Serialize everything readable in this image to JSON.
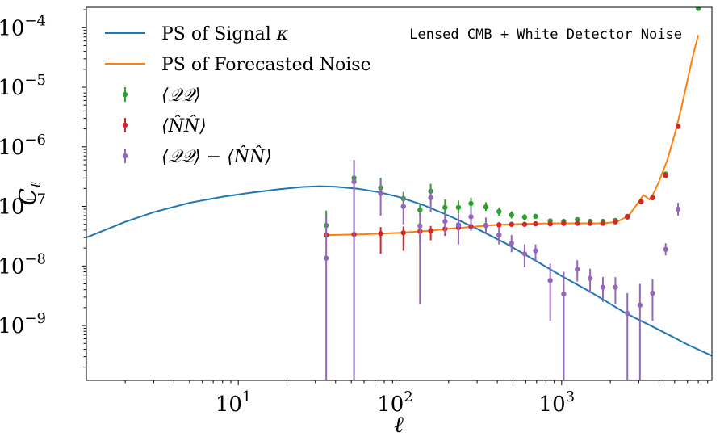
{
  "chart_data": {
    "type": "scatter",
    "xlabel": "ℓ",
    "ylabel": "C_ℓ",
    "xscale": "log",
    "yscale": "log",
    "xlim": [
      1.15,
      8500
    ],
    "ylim": [
      1.2e-10,
      0.00022
    ],
    "x_ticks": [
      {
        "value": 10,
        "label": "10",
        "exp": "1"
      },
      {
        "value": 100,
        "label": "10",
        "exp": "2"
      },
      {
        "value": 1000,
        "label": "10",
        "exp": "3"
      }
    ],
    "y_ticks": [
      {
        "value": 1e-09,
        "label": "10",
        "exp": "−9"
      },
      {
        "value": 1e-08,
        "label": "10",
        "exp": "−8"
      },
      {
        "value": 1e-07,
        "label": "10",
        "exp": "−7"
      },
      {
        "value": 1e-06,
        "label": "10",
        "exp": "−6"
      },
      {
        "value": 1e-05,
        "label": "10",
        "exp": "−5"
      },
      {
        "value": 0.0001,
        "label": "10",
        "exp": "−4"
      }
    ],
    "annotation": "Lensed CMB + White Detector Noise",
    "legend_position": "top-left",
    "colors": {
      "signal": "#1f77b4",
      "noise": "#ff7f0e",
      "QQ": "#2ca02c",
      "NN": "#d62728",
      "diff": "#9467bd"
    },
    "lines": [
      {
        "name": "PS of Signal κ",
        "color": "#1f77b4",
        "x": [
          1.15,
          2,
          3,
          5,
          8,
          12,
          18,
          25,
          32,
          40,
          55,
          75,
          100,
          140,
          200,
          300,
          450,
          700,
          1000,
          1500,
          2500,
          4000,
          6000,
          8500
        ],
        "y": [
          3e-08,
          5.5e-08,
          8e-08,
          1.15e-07,
          1.45e-07,
          1.7e-07,
          1.95e-07,
          2.12e-07,
          2.18e-07,
          2.14e-07,
          1.98e-07,
          1.72e-07,
          1.42e-07,
          1.05e-07,
          7e-08,
          4.2e-08,
          2.4e-08,
          1.2e-08,
          6.8e-09,
          3.7e-09,
          1.6e-09,
          8.5e-10,
          4.8e-10,
          3.1e-10
        ]
      },
      {
        "name": "PS of Forecasted Noise",
        "color": "#ff7f0e",
        "x": [
          35,
          60,
          100,
          150,
          200,
          300,
          400,
          600,
          900,
          1300,
          1800,
          2200,
          2600,
          2900,
          3200,
          3500,
          3700,
          4000,
          4500,
          5000,
          5500,
          6000,
          6500,
          7000
        ],
        "y": [
          3.3e-08,
          3.4e-08,
          3.6e-08,
          3.9e-08,
          4.2e-08,
          4.6e-08,
          4.9e-08,
          5.1e-08,
          5.2e-08,
          5.2e-08,
          5.2e-08,
          5.5e-08,
          7e-08,
          1.05e-07,
          1.55e-07,
          1.3e-07,
          1.65e-07,
          2.6e-07,
          6e-07,
          1.6e-06,
          4.5e-06,
          1.3e-05,
          3.5e-05,
          7.5e-05
        ]
      }
    ],
    "series": [
      {
        "name": "⟨QQ⟩",
        "color": "#2ca02c",
        "points": [
          {
            "x": 35,
            "y": 4.8e-08,
            "lo": 3.5e-08,
            "hi": 8.5e-08
          },
          {
            "x": 52,
            "y": 3e-07,
            "lo": 2.5e-07,
            "hi": 3.3e-07
          },
          {
            "x": 76,
            "y": 2.05e-07,
            "lo": 1.6e-07,
            "hi": 3e-07
          },
          {
            "x": 105,
            "y": 1.35e-07,
            "lo": 1e-07,
            "hi": 1.75e-07
          },
          {
            "x": 133,
            "y": 8.7e-08,
            "lo": 7e-08,
            "hi": 1.1e-07
          },
          {
            "x": 155,
            "y": 1.8e-07,
            "lo": 1.2e-07,
            "hi": 2.4e-07
          },
          {
            "x": 190,
            "y": 9.6e-08,
            "lo": 7.5e-08,
            "hi": 1.3e-07
          },
          {
            "x": 230,
            "y": 9.6e-08,
            "lo": 7.6e-08,
            "hi": 1.25e-07
          },
          {
            "x": 275,
            "y": 1.12e-07,
            "lo": 9e-08,
            "hi": 1.4e-07
          },
          {
            "x": 340,
            "y": 9.8e-08,
            "lo": 8.4e-08,
            "hi": 1.17e-07
          },
          {
            "x": 410,
            "y": 8.2e-08,
            "lo": 7e-08,
            "hi": 9.6e-08
          },
          {
            "x": 490,
            "y": 7.2e-08,
            "lo": 6.3e-08,
            "hi": 8.3e-08
          },
          {
            "x": 590,
            "y": 6.6e-08,
            "lo": 5.9e-08,
            "hi": 7.4e-08
          },
          {
            "x": 690,
            "y": 6.8e-08,
            "lo": 6.2e-08,
            "hi": 7.5e-08
          },
          {
            "x": 850,
            "y": 5.7e-08,
            "lo": 5.3e-08,
            "hi": 6.2e-08
          },
          {
            "x": 1030,
            "y": 5.6e-08,
            "lo": 5.2e-08,
            "hi": 6.1e-08
          },
          {
            "x": 1250,
            "y": 6e-08,
            "lo": 5.6e-08,
            "hi": 6.5e-08
          },
          {
            "x": 1500,
            "y": 5.6e-08,
            "lo": 5.2e-08,
            "hi": 6e-08
          },
          {
            "x": 1800,
            "y": 5.6e-08,
            "lo": 5.2e-08,
            "hi": 6e-08
          },
          {
            "x": 2150,
            "y": 5.8e-08,
            "lo": 5.4e-08,
            "hi": 6.3e-08
          },
          {
            "x": 2550,
            "y": 6.6e-08,
            "lo": 6.2e-08,
            "hi": 7.1e-08
          },
          {
            "x": 3100,
            "y": 1.2e-07,
            "lo": 1.12e-07,
            "hi": 1.28e-07
          },
          {
            "x": 3650,
            "y": 1.4e-07,
            "lo": 1.32e-07,
            "hi": 1.48e-07
          },
          {
            "x": 4400,
            "y": 3.5e-07,
            "lo": 3.2e-07,
            "hi": 3.8e-07
          },
          {
            "x": 5250,
            "y": 2.2e-06,
            "lo": 2e-06,
            "hi": 2.4e-06
          },
          {
            "x": 7000,
            "y": 0.00021,
            "lo": 0.0002,
            "hi": 0.00022
          }
        ]
      },
      {
        "name": "⟨N̂N̂⟩",
        "color": "#d62728",
        "points": [
          {
            "x": 35,
            "y": 3.3e-08,
            "lo": 3.1e-08,
            "hi": 3.5e-08
          },
          {
            "x": 52,
            "y": 3.4e-08,
            "lo": 3.1e-08,
            "hi": 3.6e-08
          },
          {
            "x": 76,
            "y": 3.5e-08,
            "lo": 1.6e-08,
            "hi": 4.5e-08
          },
          {
            "x": 105,
            "y": 3.6e-08,
            "lo": 1.8e-08,
            "hi": 4.6e-08
          },
          {
            "x": 133,
            "y": 3.8e-08,
            "lo": 2.3e-08,
            "hi": 4.6e-08
          },
          {
            "x": 155,
            "y": 3.9e-08,
            "lo": 2.7e-08,
            "hi": 4.7e-08
          },
          {
            "x": 190,
            "y": 4.2e-08,
            "lo": 3.2e-08,
            "hi": 4.9e-08
          },
          {
            "x": 230,
            "y": 4.4e-08,
            "lo": 3.6e-08,
            "hi": 5e-08
          },
          {
            "x": 275,
            "y": 4.6e-08,
            "lo": 3.9e-08,
            "hi": 5.2e-08
          },
          {
            "x": 340,
            "y": 4.8e-08,
            "lo": 4.2e-08,
            "hi": 5.3e-08
          },
          {
            "x": 410,
            "y": 4.9e-08,
            "lo": 4.4e-08,
            "hi": 5.4e-08
          },
          {
            "x": 490,
            "y": 5e-08,
            "lo": 4.6e-08,
            "hi": 5.4e-08
          },
          {
            "x": 590,
            "y": 5e-08,
            "lo": 4.7e-08,
            "hi": 5.4e-08
          },
          {
            "x": 690,
            "y": 5.1e-08,
            "lo": 4.8e-08,
            "hi": 5.4e-08
          },
          {
            "x": 850,
            "y": 5.1e-08,
            "lo": 4.9e-08,
            "hi": 5.4e-08
          },
          {
            "x": 1030,
            "y": 5.2e-08,
            "lo": 4.9e-08,
            "hi": 5.4e-08
          },
          {
            "x": 1250,
            "y": 5.2e-08,
            "lo": 5e-08,
            "hi": 5.4e-08
          },
          {
            "x": 1500,
            "y": 5.2e-08,
            "lo": 5e-08,
            "hi": 5.4e-08
          },
          {
            "x": 1800,
            "y": 5.2e-08,
            "lo": 5e-08,
            "hi": 5.4e-08
          },
          {
            "x": 2150,
            "y": 5.5e-08,
            "lo": 5.3e-08,
            "hi": 5.7e-08
          },
          {
            "x": 2550,
            "y": 6.8e-08,
            "lo": 6.5e-08,
            "hi": 7.1e-08
          },
          {
            "x": 3100,
            "y": 1.2e-07,
            "lo": 1.15e-07,
            "hi": 1.25e-07
          },
          {
            "x": 3650,
            "y": 1.4e-07,
            "lo": 1.35e-07,
            "hi": 1.45e-07
          },
          {
            "x": 4400,
            "y": 3.3e-07,
            "lo": 3.1e-07,
            "hi": 3.5e-07
          },
          {
            "x": 5250,
            "y": 2.2e-06,
            "lo": 2.1e-06,
            "hi": 2.3e-06
          }
        ]
      },
      {
        "name": "⟨QQ⟩ − ⟨N̂N̂⟩",
        "color": "#9467bd",
        "points": [
          {
            "x": 35,
            "y": 1.35e-08,
            "lo": 1.2e-10,
            "hi": 7e-08
          },
          {
            "x": 52,
            "y": 2.6e-07,
            "lo": 1.2e-10,
            "hi": 6e-07
          },
          {
            "x": 76,
            "y": 1.65e-07,
            "lo": 7e-08,
            "hi": 2.8e-07
          },
          {
            "x": 105,
            "y": 1e-07,
            "lo": 5e-08,
            "hi": 1.5e-07
          },
          {
            "x": 133,
            "y": 4.7e-08,
            "lo": 2.3e-09,
            "hi": 8e-08
          },
          {
            "x": 155,
            "y": 1.4e-07,
            "lo": 8e-08,
            "hi": 2e-07
          },
          {
            "x": 190,
            "y": 5.6e-08,
            "lo": 3.5e-08,
            "hi": 8e-08
          },
          {
            "x": 230,
            "y": 4.9e-08,
            "lo": 2.3e-08,
            "hi": 7.5e-08
          },
          {
            "x": 275,
            "y": 6.7e-08,
            "lo": 4e-08,
            "hi": 9.5e-08
          },
          {
            "x": 340,
            "y": 4.8e-08,
            "lo": 3.5e-08,
            "hi": 6.5e-08
          },
          {
            "x": 410,
            "y": 3.3e-08,
            "lo": 2.3e-08,
            "hi": 4.5e-08
          },
          {
            "x": 490,
            "y": 2.4e-08,
            "lo": 1.7e-08,
            "hi": 3.3e-08
          },
          {
            "x": 590,
            "y": 1.6e-08,
            "lo": 9.5e-09,
            "hi": 2.3e-08
          },
          {
            "x": 690,
            "y": 1.8e-08,
            "lo": 1.2e-08,
            "hi": 2.3e-08
          },
          {
            "x": 850,
            "y": 5.7e-09,
            "lo": 1.2e-09,
            "hi": 1.1e-08
          },
          {
            "x": 1030,
            "y": 3.4e-09,
            "lo": 1.2e-10,
            "hi": 8e-09
          },
          {
            "x": 1250,
            "y": 8.8e-09,
            "lo": 5.5e-09,
            "hi": 1.25e-08
          },
          {
            "x": 1500,
            "y": 6.2e-09,
            "lo": 3.5e-09,
            "hi": 9e-09
          },
          {
            "x": 1800,
            "y": 4.4e-09,
            "lo": 2.5e-09,
            "hi": 6.5e-09
          },
          {
            "x": 2150,
            "y": 4.4e-09,
            "lo": 2.3e-09,
            "hi": 6.5e-09
          },
          {
            "x": 2550,
            "y": 1.6e-09,
            "lo": 1.2e-10,
            "hi": 3.5e-09
          },
          {
            "x": 3050,
            "y": 2.2e-09,
            "lo": 1.2e-10,
            "hi": 5e-09
          },
          {
            "x": 3650,
            "y": 3.5e-09,
            "lo": 1.2e-09,
            "hi": 6e-09
          },
          {
            "x": 4400,
            "y": 1.9e-08,
            "lo": 1.5e-08,
            "hi": 2.4e-08
          },
          {
            "x": 5250,
            "y": 9e-08,
            "lo": 7e-08,
            "hi": 1.15e-07
          }
        ]
      }
    ],
    "legend": [
      {
        "label": "PS of Signal ",
        "math": "κ",
        "kind": "line",
        "color": "#1f77b4"
      },
      {
        "label": "PS of Forecasted Noise",
        "math": "",
        "kind": "line",
        "color": "#ff7f0e"
      },
      {
        "label": "",
        "math": "⟨𝒬𝒬⟩",
        "kind": "errorbar",
        "color": "#2ca02c"
      },
      {
        "label": "",
        "math": "⟨N̂N̂⟩",
        "kind": "errorbar",
        "color": "#d62728"
      },
      {
        "label": "",
        "math": "⟨𝒬𝒬⟩ − ⟨N̂N̂⟩",
        "kind": "errorbar",
        "color": "#9467bd"
      }
    ]
  }
}
